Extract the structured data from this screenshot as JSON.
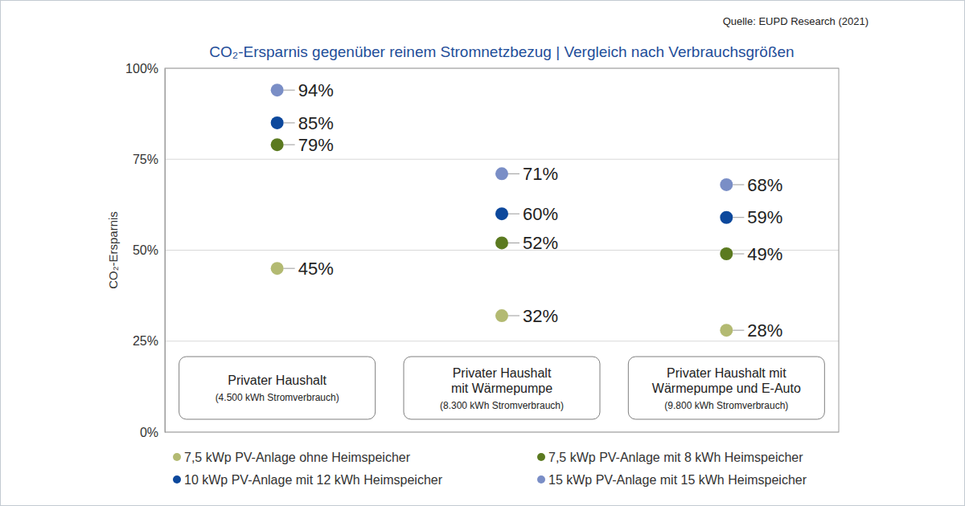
{
  "chart_data": {
    "type": "scatter",
    "title": "CO₂-Ersparnis gegenüber reinem Stromnetzbezug | Vergleich nach Verbrauchsgrößen",
    "source": "Quelle: EUPD Research (2021)",
    "y_label": "CO₂-Ersparnis",
    "categories": [
      "Privater Haushalt",
      "Privater Haushalt\nmit Wärmepumpe",
      "Privater Haushalt mit\nWärmepumpe und E-Auto"
    ],
    "category_notes": [
      "(4.500 kWh Stromverbrauch)",
      "(8.300 kWh Stromverbrauch)",
      "(9.800 kWh Stromverbrauch)"
    ],
    "series": [
      {
        "name": "7,5 kWp PV-Anlage ohne Heimspeicher",
        "color": "#b3ba72",
        "values": [
          45,
          32,
          28
        ],
        "value_labels": [
          "45%",
          "32%",
          "28%"
        ]
      },
      {
        "name": "7,5 kWp PV-Anlage mit 8 kWh Heimspeicher",
        "color": "#5b7a20",
        "values": [
          79,
          52,
          49
        ],
        "value_labels": [
          "79%",
          "52%",
          "49%"
        ]
      },
      {
        "name": "10 kWp PV-Anlage mit 12 kWh Heimspeicher",
        "color": "#0c489c",
        "values": [
          85,
          60,
          59
        ],
        "value_labels": [
          "85%",
          "60%",
          "59%"
        ]
      },
      {
        "name": "15 kWp PV-Anlage mit 15 kWh Heimspeicher",
        "color": "#7a8ec6",
        "values": [
          94,
          71,
          68
        ],
        "value_labels": [
          "94%",
          "71%",
          "68%"
        ]
      }
    ],
    "ylim": [
      0,
      100
    ],
    "yticks": [
      {
        "value": 0,
        "label": "0%"
      },
      {
        "value": 25,
        "label": "25%"
      },
      {
        "value": 50,
        "label": "50%"
      },
      {
        "value": 75,
        "label": "75%"
      },
      {
        "value": 100,
        "label": "100%"
      }
    ],
    "grid": true,
    "legend": "bottom",
    "data_labels": true,
    "marker": "circle"
  }
}
